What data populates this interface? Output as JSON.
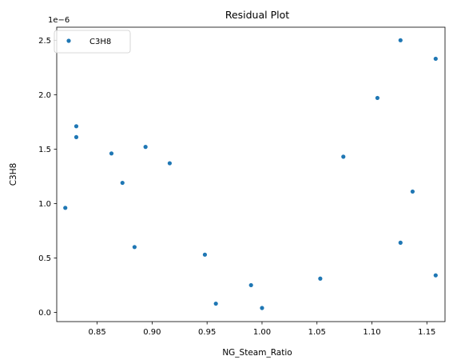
{
  "chart_data": {
    "type": "scatter",
    "title": "Residual Plot",
    "xlabel": "NG_Steam_Ratio",
    "ylabel": "C3H8",
    "y_scale_label": "1e−6",
    "xlim": [
      0.8132,
      1.1665
    ],
    "ylim": [
      -0.085,
      2.62
    ],
    "x_ticks": [
      "0.85",
      "0.90",
      "0.95",
      "1.00",
      "1.05",
      "1.10",
      "1.15"
    ],
    "x_tick_values": [
      0.85,
      0.9,
      0.95,
      1.0,
      1.05,
      1.1,
      1.15
    ],
    "y_ticks": [
      "0.0",
      "0.5",
      "1.0",
      "1.5",
      "2.0",
      "2.5"
    ],
    "y_tick_values": [
      0.0,
      0.5,
      1.0,
      1.5,
      2.0,
      2.5
    ],
    "legend_position": "upper-left",
    "grid": false,
    "series": [
      {
        "name": "C3H8",
        "color": "#1f77b4",
        "points": [
          [
            0.821,
            0.96
          ],
          [
            0.831,
            1.71
          ],
          [
            0.831,
            1.61
          ],
          [
            0.863,
            1.46
          ],
          [
            0.873,
            1.19
          ],
          [
            0.884,
            0.6
          ],
          [
            0.894,
            1.52
          ],
          [
            0.916,
            1.37
          ],
          [
            0.948,
            0.53
          ],
          [
            0.958,
            0.08
          ],
          [
            0.99,
            0.25
          ],
          [
            1.0,
            0.04
          ],
          [
            1.053,
            0.31
          ],
          [
            1.074,
            1.43
          ],
          [
            1.105,
            1.97
          ],
          [
            1.126,
            2.5
          ],
          [
            1.126,
            0.64
          ],
          [
            1.137,
            1.11
          ],
          [
            1.158,
            2.33
          ],
          [
            1.158,
            0.34
          ]
        ]
      }
    ]
  }
}
